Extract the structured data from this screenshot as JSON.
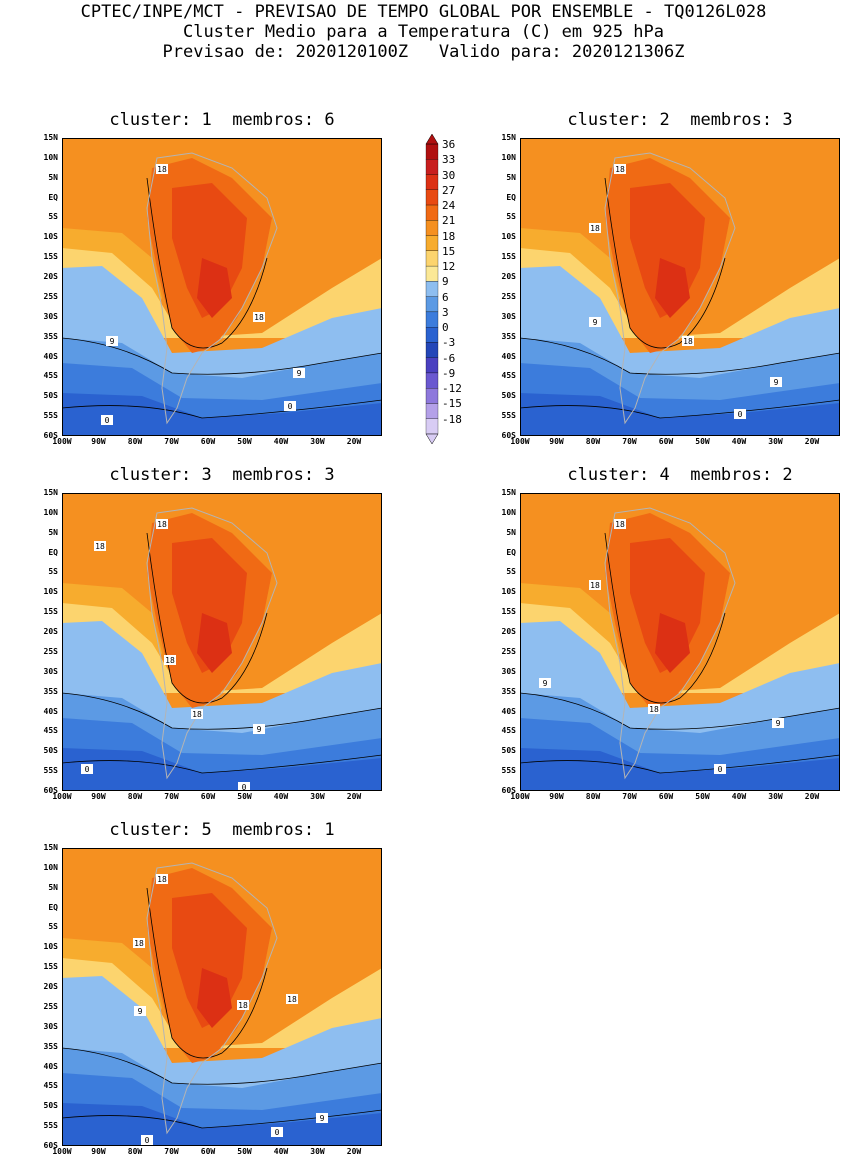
{
  "header": {
    "line1": "CPTEC/INPE/MCT - PREVISAO DE TEMPO GLOBAL POR ENSEMBLE - TQ0126L028",
    "line2": "Cluster Medio para a Temperatura (C) em 925 hPa",
    "line3": "Previsao de: 2020120100Z   Valido para: 2020121306Z"
  },
  "panels": [
    {
      "title": "cluster: 1  membros: 6",
      "contour_labels": [
        "18",
        "18",
        "9",
        "9",
        "0",
        "0"
      ]
    },
    {
      "title": "cluster: 2  membros: 3",
      "contour_labels": [
        "18",
        "18",
        "18",
        "9",
        "9",
        "0"
      ]
    },
    {
      "title": "cluster: 3  membros: 3",
      "contour_labels": [
        "18",
        "18",
        "18",
        "18",
        "9",
        "0",
        "0"
      ]
    },
    {
      "title": "cluster: 4  membros: 2",
      "contour_labels": [
        "18",
        "18",
        "18",
        "9",
        "9",
        "0"
      ]
    },
    {
      "title": "cluster: 5  membros: 1",
      "contour_labels": [
        "18",
        "18",
        "18",
        "18",
        "9",
        "9",
        "0",
        "0"
      ]
    }
  ],
  "axes": {
    "lat_labels": [
      "15N",
      "10N",
      "5N",
      "EQ",
      "5S",
      "10S",
      "15S",
      "20S",
      "25S",
      "30S",
      "35S",
      "40S",
      "45S",
      "50S",
      "55S",
      "60S"
    ],
    "lon_labels": [
      "100W",
      "90W",
      "80W",
      "70W",
      "60W",
      "50W",
      "40W",
      "30W",
      "20W"
    ]
  },
  "colorbar": {
    "levels": [
      "36",
      "33",
      "30",
      "27",
      "24",
      "21",
      "18",
      "15",
      "12",
      "9",
      "6",
      "3",
      "0",
      "-3",
      "-6",
      "-9",
      "-12",
      "-15",
      "-18"
    ],
    "colors": [
      "#b01010",
      "#c81e1e",
      "#dc3014",
      "#e84a12",
      "#f06a14",
      "#f59020",
      "#f7ac2e",
      "#fcd46e",
      "#fbe896",
      "#8ebef0",
      "#5c9ae4",
      "#3c7cdc",
      "#2a62d0",
      "#2346b8",
      "#4a40c0",
      "#6a58d0",
      "#8e78dc",
      "#b4a0e8",
      "#d8ccf4"
    ]
  },
  "colors": {
    "land_border": "#b4b4b4",
    "contour": "#000000"
  }
}
